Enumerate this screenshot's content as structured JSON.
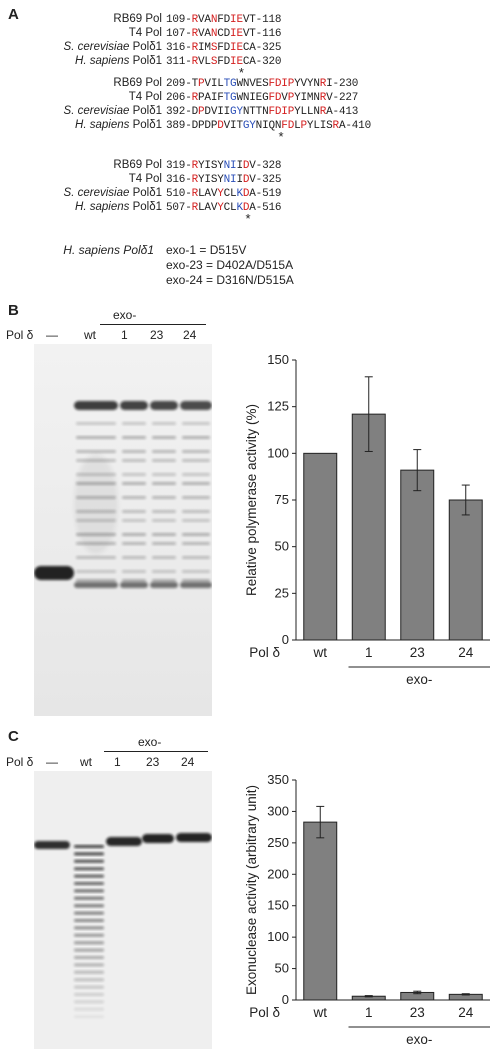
{
  "panels": {
    "a": "A",
    "b": "B",
    "c": "C"
  },
  "alignment": {
    "blocks": [
      {
        "rows": [
          {
            "species": "RB69 Pol",
            "italic": false,
            "start": "109",
            "end": "118",
            "seq": "RVANFDIEVT",
            "colors": "r..r..rr.."
          },
          {
            "species": "T4 Pol",
            "italic": false,
            "start": "107",
            "end": "116",
            "seq": "RVANCDIEVT",
            "colors": "r..r..rr.."
          },
          {
            "species": "S. cerevisiae Polδ1",
            "italic": true,
            "start": "316",
            "end": "325",
            "seq": "RIMSFDIECA",
            "colors": "r..r..rr.."
          },
          {
            "species": "H. sapiens Polδ1",
            "italic": true,
            "start": "311",
            "end": "320",
            "seq": "RVLSFDIECA",
            "colors": "r..r..rr.."
          }
        ],
        "star_index": 7
      },
      {
        "rows": [
          {
            "species": "RB69 Pol",
            "italic": false,
            "start": "209",
            "end": "230",
            "seq": "TPVILTGWNVESFDIPYVYNRI",
            "colors": ".r...bb.....rrrr....r."
          },
          {
            "species": "T4 Pol",
            "italic": false,
            "start": "206",
            "end": "227",
            "seq": "RPAIFTGWNIEGFDVPYIMNRV",
            "colors": "r....bb.....rr.r....r."
          },
          {
            "species": "S. cerevisiae Polδ1",
            "italic": true,
            "start": "392",
            "end": "413",
            "seq": "DPDVIIGYNTTNFDIPYLLNRA",
            "colors": ".r....bb....rrrr....r."
          },
          {
            "species": "H. sapiens Polδ1",
            "italic": true,
            "start": "389",
            "end": "410",
            "seq": "PDVITGYNIQNFDLPYLISRA",
            "colors": ".r...bb....rr.r....r.",
            "prefix": "DPD"
          }
        ],
        "star_index": 13
      },
      {
        "rows": [
          {
            "species": "RB69 Pol",
            "italic": false,
            "start": "319",
            "end": "328",
            "seq": "RYISYNIIDV",
            "colors": "r....bb.r."
          },
          {
            "species": "T4 Pol",
            "italic": false,
            "start": "316",
            "end": "325",
            "seq": "RYISYNIIDV",
            "colors": "r....bb.r."
          },
          {
            "species": "S. cerevisiae Polδ1",
            "italic": true,
            "start": "510",
            "end": "519",
            "seq": "RLAVYCLKDA",
            "colors": "r...r..br."
          },
          {
            "species": "H. sapiens Polδ1",
            "italic": true,
            "start": "507",
            "end": "516",
            "seq": "RLAVYCLKDA",
            "colors": "r...r..br."
          }
        ],
        "star_index": 8
      }
    ],
    "mutants": {
      "species": "H. sapiens Polδ1",
      "lines": [
        "exo-1    = D515V",
        "exo-23 = D402A/D515A",
        "exo-24 = D316N/D515A"
      ]
    }
  },
  "panel_b": {
    "gel_labels": {
      "pol": "Pol δ",
      "dash": "—",
      "wt": "wt",
      "exo": "exo-",
      "lanes": [
        "1",
        "23",
        "24"
      ]
    },
    "chart_data": {
      "type": "bar",
      "categories": [
        "wt",
        "1",
        "23",
        "24"
      ],
      "values": [
        100,
        121,
        91,
        75
      ],
      "errors": [
        0,
        20,
        11,
        8
      ],
      "ylabel": "Relative polymerase activity (%)",
      "ylim": [
        0,
        150
      ],
      "yticks": [
        0,
        25,
        50,
        75,
        100,
        125,
        150
      ],
      "xprefix": "Pol δ",
      "group_label": "exo-",
      "bar_color": "#808080"
    }
  },
  "panel_c": {
    "gel_labels": {
      "pol": "Pol δ",
      "dash": "—",
      "wt": "wt",
      "exo": "exo-",
      "lanes": [
        "1",
        "23",
        "24"
      ]
    },
    "chart_data": {
      "type": "bar",
      "categories": [
        "wt",
        "1",
        "23",
        "24"
      ],
      "values": [
        283,
        6,
        12,
        9
      ],
      "errors": [
        25,
        1,
        2,
        1
      ],
      "ylabel": "Exonuclease activity (arbitrary unit)",
      "ylim": [
        0,
        350
      ],
      "yticks": [
        0,
        50,
        100,
        150,
        200,
        250,
        300,
        350
      ],
      "xprefix": "Pol δ",
      "group_label": "exo-",
      "bar_color": "#808080"
    }
  }
}
